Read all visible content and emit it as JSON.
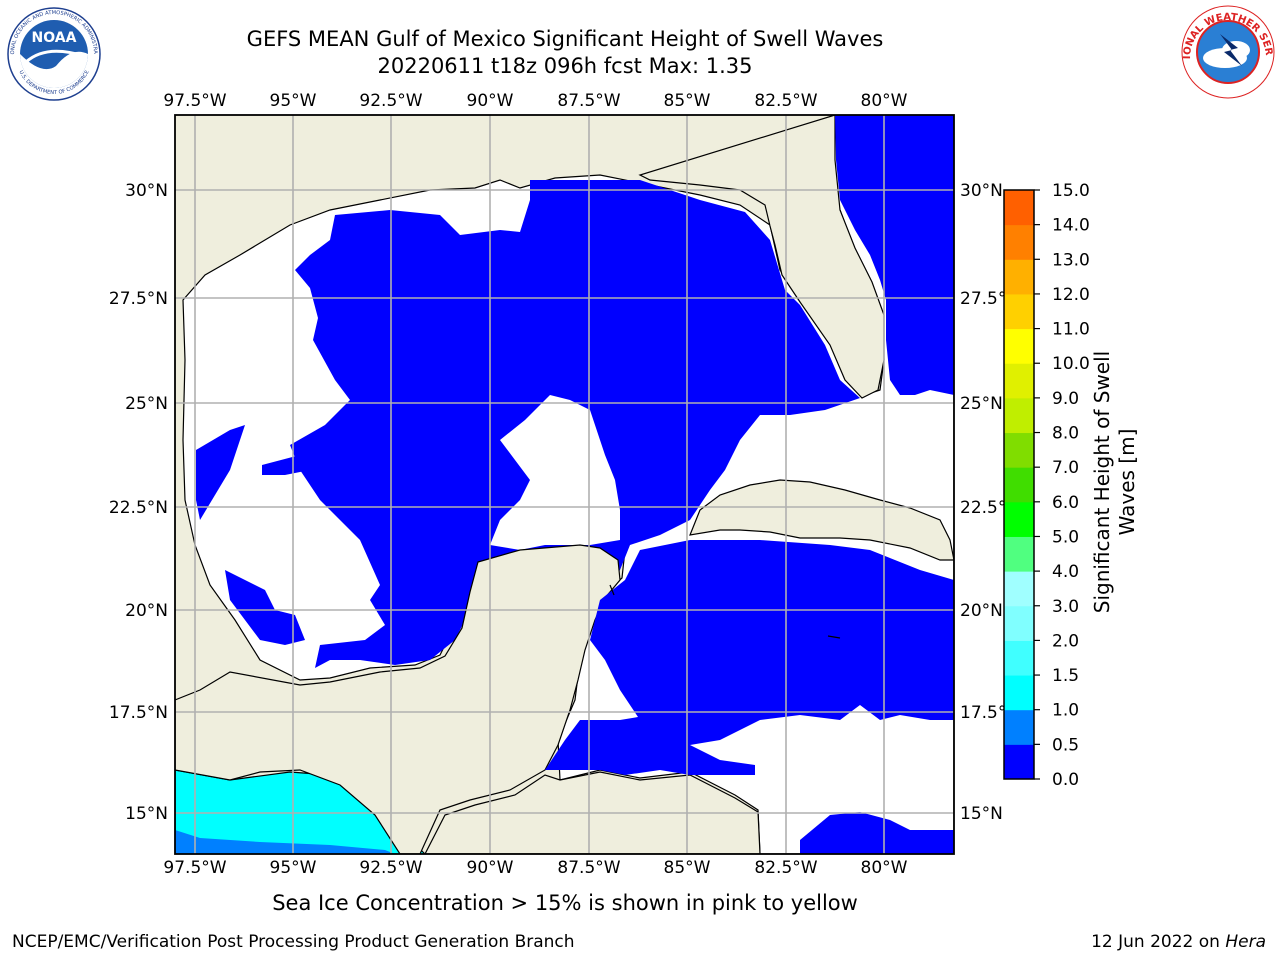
{
  "header": {
    "title_line1": "GEFS MEAN Gulf of Mexico Significant Height of Swell Waves",
    "title_line2": "20220611 t18z 096h fcst   Max: 1.35"
  },
  "logos": {
    "left": "NOAA",
    "left_ring_top": "NATIONAL OCEANIC AND ATMOSPHERIC ADMINISTRATION",
    "left_ring_bottom": "U.S. DEPARTMENT OF COMMERCE",
    "right_ring": "NATIONAL WEATHER SERVICE"
  },
  "map": {
    "lon_labels": [
      "97.5°W",
      "95°W",
      "92.5°W",
      "90°W",
      "87.5°W",
      "85°W",
      "82.5°W",
      "80°W"
    ],
    "lat_labels_left": [
      "30°N",
      "27.5°N",
      "25°N",
      "22.5°N",
      "20°N",
      "17.5°N",
      "15°N"
    ],
    "lat_labels_right": [
      "30°N",
      "27.5°N",
      "25°N",
      "22.5°N",
      "20°N",
      "17.5°N",
      "15°N"
    ],
    "colors": {
      "land": "#efeedd",
      "ocean_low": "#0000ff",
      "grid": "#b0b0b0"
    }
  },
  "colorbar": {
    "title_line1": "Significant Height of Swell",
    "title_line2": "Waves [m]",
    "ticks": [
      "0.0",
      "0.5",
      "1.0",
      "1.5",
      "2.0",
      "3.0",
      "4.0",
      "5.0",
      "6.0",
      "7.0",
      "8.0",
      "9.0",
      "10.0",
      "11.0",
      "12.0",
      "13.0",
      "14.0",
      "15.0"
    ],
    "colors": [
      "#0000ff",
      "#0080ff",
      "#00ffff",
      "#40ffff",
      "#80ffff",
      "#a0ffff",
      "#50ff80",
      "#00ff00",
      "#40dd00",
      "#80dd00",
      "#c0ee00",
      "#e0f000",
      "#ffff00",
      "#ffd000",
      "#ffb000",
      "#ff8000",
      "#ff6000",
      "#ff3000",
      "#ff0000"
    ]
  },
  "note": "Sea Ice Concentration > 15% is shown in pink to yellow",
  "footer": {
    "left": "NCEP/EMC/Verification Post Processing Product Generation Branch",
    "right_prefix": "12 Jun 2022 on",
    "right_host": "Hera"
  }
}
